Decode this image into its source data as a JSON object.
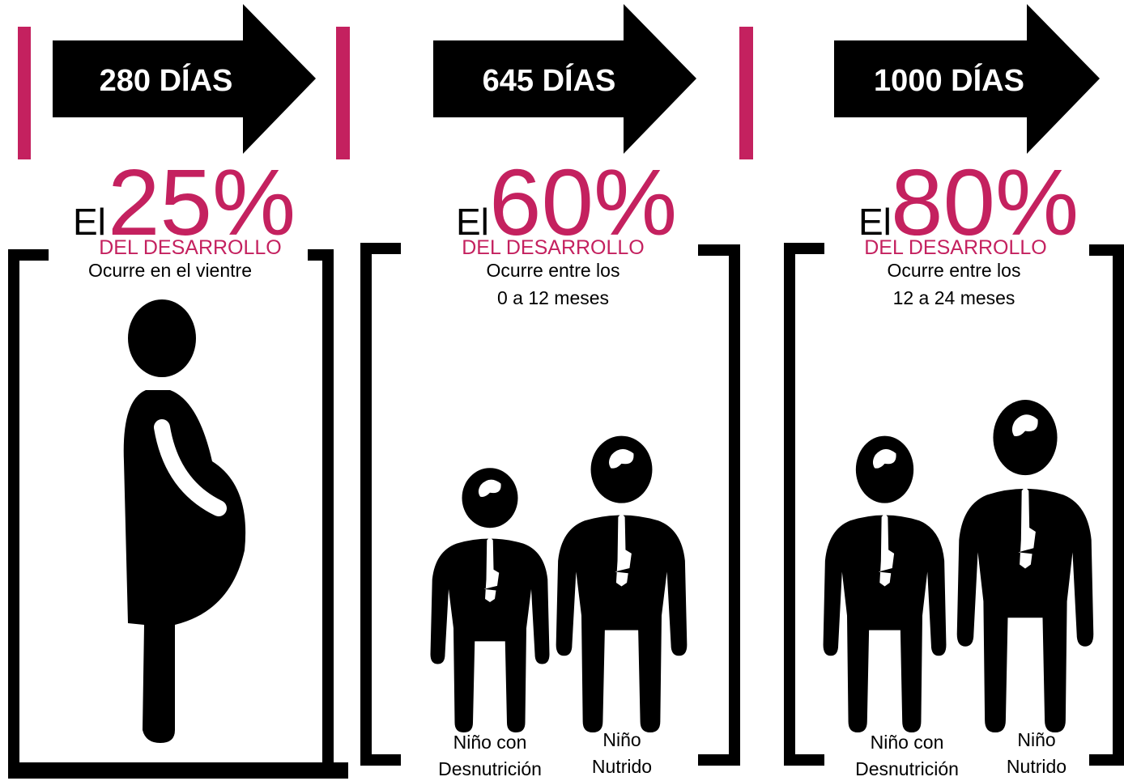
{
  "panels": [
    {
      "arrow": "280 DÍAS",
      "prefix": "El",
      "percent": "25%",
      "subtitle": "DEL DESARROLLO",
      "description": [
        "Ocurre en el vientre"
      ]
    },
    {
      "arrow": "645 DÍAS",
      "prefix": "El",
      "percent": "60%",
      "subtitle": "DEL DESARROLLO",
      "description": [
        "Ocurre entre los",
        "0 a 12 meses"
      ],
      "figures": [
        [
          "Niño con",
          "Desnutrición"
        ],
        [
          "Niño",
          "Nutrido"
        ]
      ]
    },
    {
      "arrow": "1000 DÍAS",
      "prefix": "El",
      "percent": "80%",
      "subtitle": "DEL DESARROLLO",
      "description": [
        "Ocurre entre los",
        "12 a 24 meses"
      ],
      "figures": [
        [
          "Niño con",
          "Desnutrición"
        ],
        [
          "Niño",
          "Nutrido"
        ]
      ]
    }
  ]
}
